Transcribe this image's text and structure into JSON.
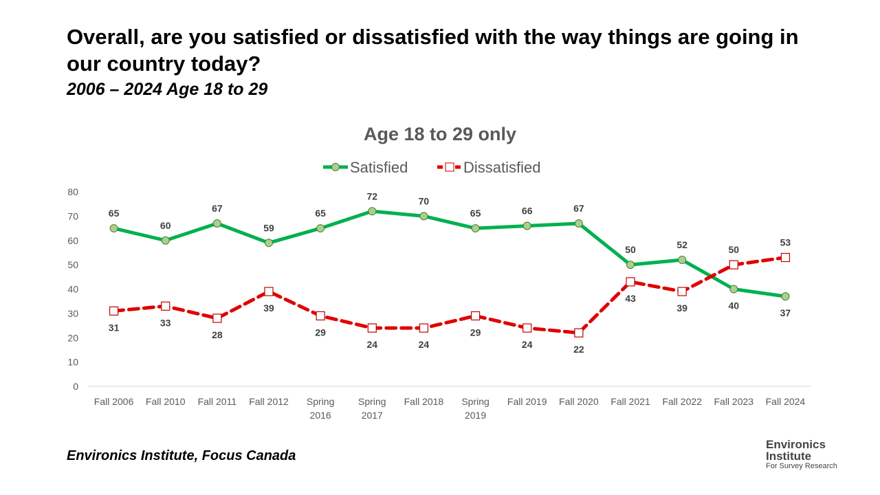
{
  "header": {
    "title": "Overall, are you satisfied or dissatisfied with the way things are going in our country today?",
    "subtitle": "2006 – 2024  Age 18 to 29"
  },
  "footer": {
    "source": "Environics Institute, Focus Canada",
    "logo": {
      "line1": "Environics",
      "line2": "Institute",
      "line3": "For Survey Research"
    }
  },
  "chart_data": {
    "type": "line",
    "title": "Age 18 to 29 only",
    "xlabel": "",
    "ylabel": "",
    "ylim": [
      0,
      80
    ],
    "yticks": [
      0,
      10,
      20,
      30,
      40,
      50,
      60,
      70,
      80
    ],
    "grid": false,
    "legend_placement": "top-center",
    "categories": [
      "Fall 2006",
      "Fall 2010",
      "Fall 2011",
      "Fall 2012",
      "Spring 2016",
      "Spring 2017",
      "Fall 2018",
      "Spring 2019",
      "Fall 2019",
      "Fall 2020",
      "Fall 2021",
      "Fall 2022",
      "Fall 2023",
      "Fall 2024"
    ],
    "series": [
      {
        "name": "Satisfied",
        "color": "#00b050",
        "marker_fill": "#a9d18e",
        "style": "solid",
        "values": [
          65,
          60,
          67,
          59,
          65,
          72,
          70,
          65,
          66,
          67,
          50,
          52,
          40,
          37
        ]
      },
      {
        "name": "Dissatisfied",
        "color": "#e00000",
        "marker_fill": "#ffffff",
        "style": "dashed",
        "values": [
          31,
          33,
          28,
          39,
          29,
          24,
          24,
          29,
          24,
          22,
          43,
          39,
          50,
          53
        ]
      }
    ]
  }
}
